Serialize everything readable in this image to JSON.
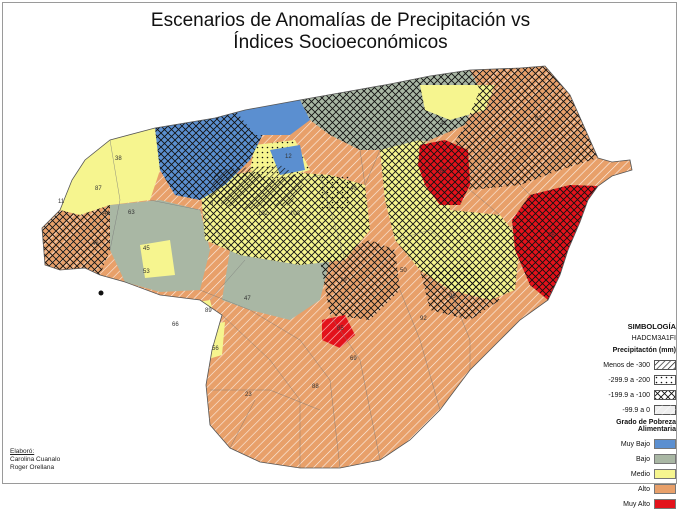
{
  "title": {
    "line1": "Escenarios de Anomalías de Precipitación vs",
    "line2": "Índices Socioeconómicos"
  },
  "legend": {
    "heading": "SIMBOLOGÍA",
    "model": "HADCM3A1FI",
    "precip_title": "Precipitactón (mm)",
    "precip_items": [
      {
        "label": "Menos de -300",
        "pattern": "dense-diagonal"
      },
      {
        "label": "-299.9 a -200",
        "pattern": "dots"
      },
      {
        "label": "-199.9 a -100",
        "pattern": "crosshatch"
      },
      {
        "label": "-99.9 a 0",
        "pattern": "light-diagonal"
      }
    ],
    "poverty_title": "Grado de Pobreza Alimentaria",
    "poverty_items": [
      {
        "label": "Muy Bajo",
        "color": "#5b8fd0"
      },
      {
        "label": "Bajo",
        "color": "#a9b7a4"
      },
      {
        "label": "Medio",
        "color": "#f6f58f"
      },
      {
        "label": "Alto",
        "color": "#e8a06a"
      },
      {
        "label": "Muy Alto",
        "color": "#e3121b"
      }
    ]
  },
  "credits": {
    "label": "Elaboró:",
    "authors": [
      "Carolina Cuanalo",
      "Roger Orellana"
    ]
  },
  "map_labels": [
    "38",
    "87",
    "11",
    "44",
    "63",
    "48",
    "45",
    "53",
    "66",
    "89",
    "56",
    "47",
    "88",
    "23",
    "40",
    "3",
    "12",
    "82",
    "76",
    "62",
    "98",
    "50",
    "92",
    "79",
    "85",
    "69",
    "103",
    "102",
    "41"
  ]
}
